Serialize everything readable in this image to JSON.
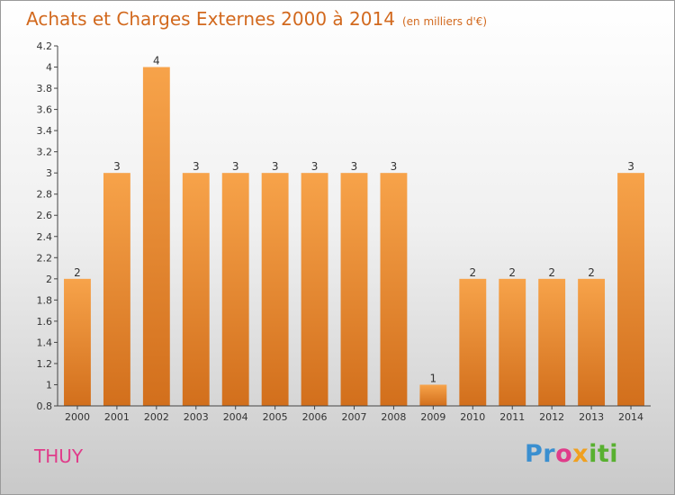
{
  "header": {
    "title": "Achats et Charges Externes 2000 à 2014",
    "subtitle": "(en milliers d'€)"
  },
  "footer": {
    "commune": "THUY",
    "logo_parts": [
      "Pr",
      "o",
      "x",
      "iti"
    ]
  },
  "colors": {
    "bar_top": "#f7a34a",
    "bar_bottom": "#d26f1c",
    "title": "#d2691e",
    "commune": "#e03c8a"
  },
  "chart_data": {
    "type": "bar",
    "categories": [
      "2000",
      "2001",
      "2002",
      "2003",
      "2004",
      "2005",
      "2006",
      "2007",
      "2008",
      "2009",
      "2010",
      "2011",
      "2012",
      "2013",
      "2014"
    ],
    "values": [
      2,
      3,
      4,
      3,
      3,
      3,
      3,
      3,
      3,
      1,
      2,
      2,
      2,
      2,
      3
    ],
    "data_labels": [
      "2",
      "3",
      "4",
      "3",
      "3",
      "3",
      "3",
      "3",
      "3",
      "1",
      "2",
      "2",
      "2",
      "2",
      "3"
    ],
    "ylim": [
      0.8,
      4.2
    ],
    "yticks": [
      0.8,
      1,
      1.2,
      1.4,
      1.6,
      1.8,
      2,
      2.2,
      2.4,
      2.6,
      2.8,
      3,
      3.2,
      3.4,
      3.6,
      3.8,
      4,
      4.2
    ],
    "ytick_labels": [
      "0.8",
      "1",
      "1.2",
      "1.4",
      "1.6",
      "1.8",
      "2",
      "2.2",
      "2.4",
      "2.6",
      "2.8",
      "3",
      "3.2",
      "3.4",
      "3.6",
      "3.8",
      "4",
      "4.2"
    ],
    "grid": false,
    "legend": "none"
  }
}
